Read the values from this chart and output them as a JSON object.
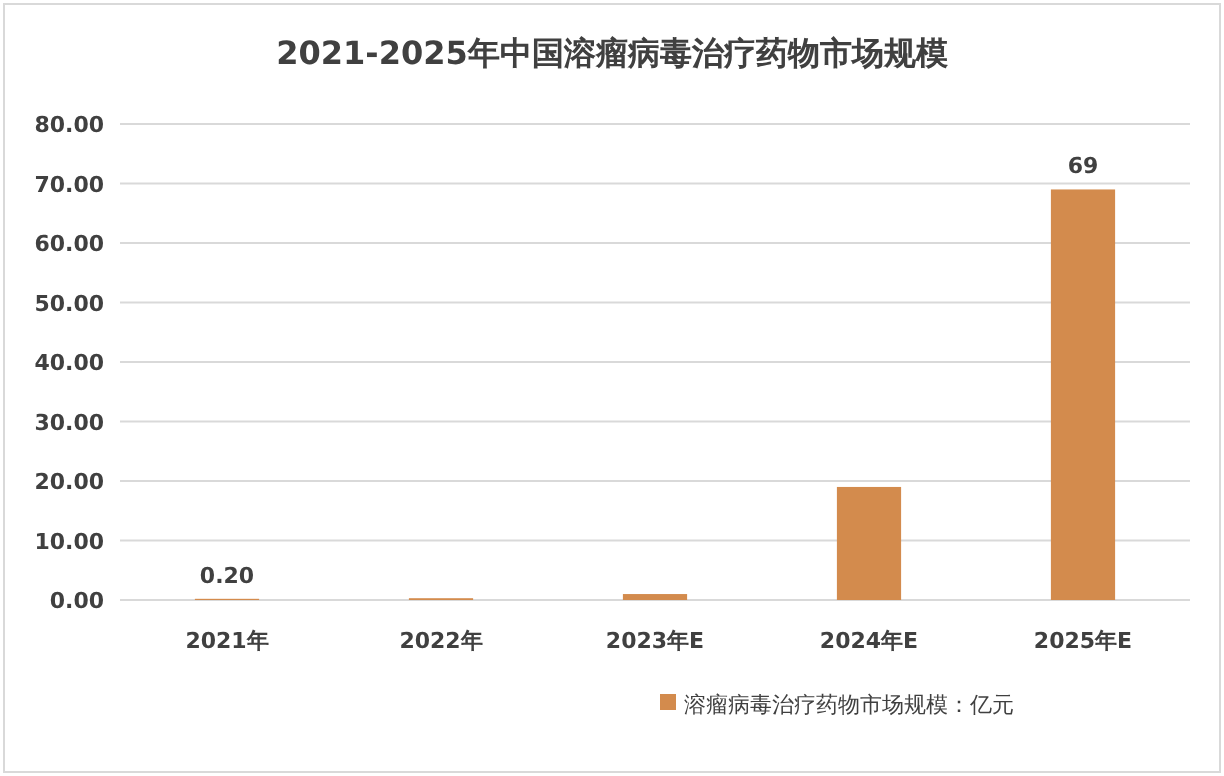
{
  "chart_data": {
    "type": "bar",
    "title": "2021-2025年中国溶瘤病毒治疗药物市场规模",
    "categories": [
      "2021年",
      "2022年",
      "2023年E",
      "2024年E",
      "2025年E"
    ],
    "series": [
      {
        "name": "溶瘤病毒治疗药物市场规模：亿元",
        "color": "#d38b4d",
        "values": [
          0.2,
          0.3,
          1.0,
          19,
          69
        ],
        "value_labels": [
          "0.20",
          null,
          null,
          null,
          "69"
        ]
      }
    ],
    "ylim": [
      0,
      80
    ],
    "yticks": [
      {
        "value": 0,
        "label": "0.00"
      },
      {
        "value": 10,
        "label": "10.00"
      },
      {
        "value": 20,
        "label": "20.00"
      },
      {
        "value": 30,
        "label": "30.00"
      },
      {
        "value": 40,
        "label": "40.00"
      },
      {
        "value": 50,
        "label": "50.00"
      },
      {
        "value": 60,
        "label": "60.00"
      },
      {
        "value": 70,
        "label": "70.00"
      },
      {
        "value": 80,
        "label": "80.00"
      }
    ],
    "grid": "y",
    "legend": "bottom right"
  }
}
